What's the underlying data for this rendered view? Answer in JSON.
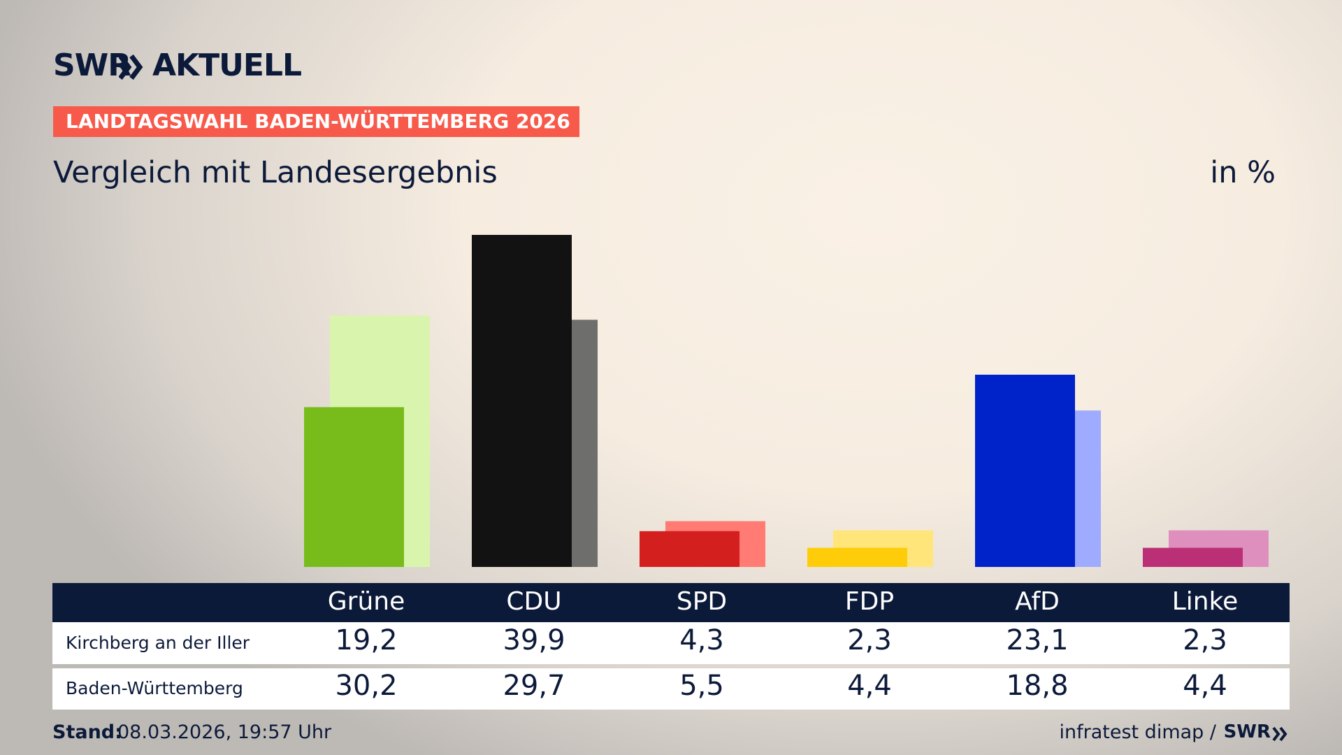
{
  "header": {
    "brand": "SWR",
    "product": "AKTUELL",
    "banner": "LANDTAGSWAHL BADEN-WÜRTTEMBERG 2026"
  },
  "chart_data": {
    "type": "bar",
    "title": "Vergleich mit Landesergebnis",
    "unit": "in %",
    "categories": [
      "Grüne",
      "CDU",
      "SPD",
      "FDP",
      "AfD",
      "Linke"
    ],
    "series": [
      {
        "name": "Kirchberg an der Iller",
        "colors": [
          "#78bc1b",
          "#121212",
          "#d41f1f",
          "#ffcc0a",
          "#0022c9",
          "#bb2f76"
        ],
        "values": [
          19.2,
          39.9,
          4.3,
          2.3,
          23.1,
          2.3
        ],
        "value_labels": [
          "19,2",
          "39,9",
          "4,3",
          "2,3",
          "23,1",
          "2,3"
        ]
      },
      {
        "name": "Baden-Württemberg",
        "colors": [
          "#d9f5ad",
          "#6e6e6c",
          "#ff7b73",
          "#ffe57a",
          "#9fabff",
          "#de8fbd"
        ],
        "values": [
          30.2,
          29.7,
          5.5,
          4.4,
          18.8,
          4.4
        ],
        "value_labels": [
          "30,2",
          "29,7",
          "5,5",
          "4,4",
          "18,8",
          "4,4"
        ]
      }
    ]
  },
  "footer": {
    "stand_label": "Stand:",
    "stand": "08.03.2026, 19:57 Uhr",
    "source": "infratest dimap /",
    "source_brand": "SWR"
  }
}
